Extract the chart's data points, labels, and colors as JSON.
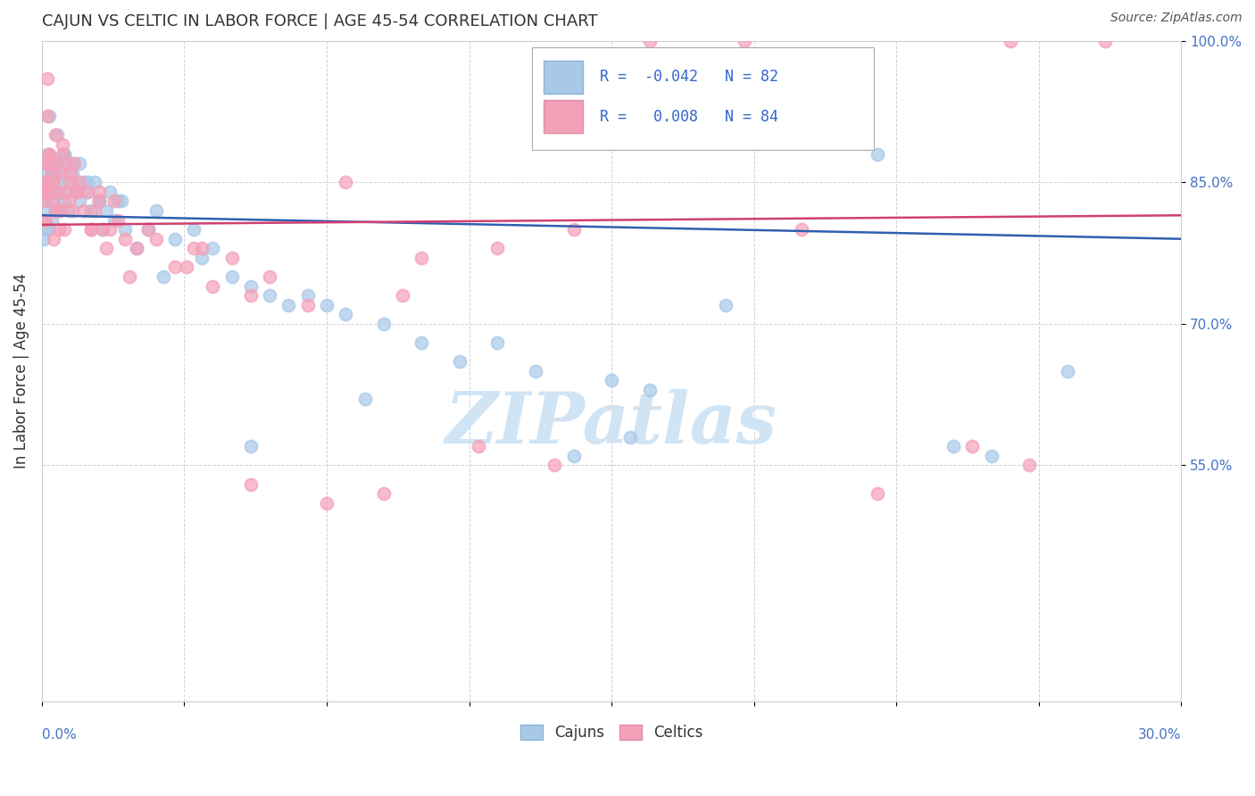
{
  "title": "CAJUN VS CELTIC IN LABOR FORCE | AGE 45-54 CORRELATION CHART",
  "source": "Source: ZipAtlas.com",
  "ylabel": "In Labor Force | Age 45-54",
  "xlim": [
    0.0,
    30.0
  ],
  "ylim": [
    30.0,
    100.0
  ],
  "yticks": [
    55.0,
    70.0,
    85.0,
    100.0
  ],
  "cajun_R": -0.042,
  "cajun_N": 82,
  "celtic_R": 0.008,
  "celtic_N": 84,
  "cajun_color": "#a8c8e8",
  "celtic_color": "#f4a0b8",
  "cajun_line_color": "#3060b0",
  "celtic_line_color": "#d04070",
  "watermark_text": "ZIPatlas",
  "watermark_color": "#d0e4f4",
  "cajun_x": [
    0.05,
    0.05,
    0.05,
    0.1,
    0.1,
    0.1,
    0.1,
    0.15,
    0.15,
    0.2,
    0.2,
    0.2,
    0.25,
    0.25,
    0.3,
    0.3,
    0.35,
    0.35,
    0.4,
    0.4,
    0.4,
    0.5,
    0.5,
    0.6,
    0.6,
    0.7,
    0.7,
    0.8,
    0.9,
    1.0,
    1.0,
    1.1,
    1.2,
    1.3,
    1.4,
    1.5,
    1.6,
    1.7,
    1.8,
    1.9,
    2.0,
    2.2,
    2.5,
    2.8,
    3.0,
    3.5,
    4.0,
    4.5,
    5.0,
    5.5,
    6.5,
    7.0,
    7.5,
    8.0,
    9.0,
    10.0,
    11.0,
    13.0,
    15.0,
    16.0,
    18.0,
    20.0,
    22.0,
    24.0,
    25.0,
    27.0,
    14.0,
    15.5,
    12.0,
    8.5,
    6.0,
    5.5,
    4.2,
    3.2,
    2.1,
    1.5,
    1.2,
    0.8,
    0.6,
    0.4,
    0.3,
    0.2
  ],
  "cajun_y": [
    82.0,
    85.0,
    79.0,
    87.0,
    84.0,
    83.0,
    80.0,
    88.0,
    86.0,
    92.0,
    85.0,
    80.0,
    84.0,
    81.0,
    86.0,
    83.0,
    87.0,
    82.0,
    90.0,
    85.0,
    82.0,
    87.0,
    84.0,
    88.0,
    83.0,
    85.0,
    82.0,
    86.0,
    84.0,
    87.0,
    83.0,
    85.0,
    84.0,
    82.0,
    85.0,
    83.0,
    80.0,
    82.0,
    84.0,
    81.0,
    83.0,
    80.0,
    78.0,
    80.0,
    82.0,
    79.0,
    80.0,
    78.0,
    75.0,
    74.0,
    72.0,
    73.0,
    72.0,
    71.0,
    70.0,
    68.0,
    66.0,
    65.0,
    64.0,
    63.0,
    72.0,
    91.0,
    88.0,
    57.0,
    56.0,
    65.0,
    56.0,
    58.0,
    68.0,
    62.0,
    73.0,
    57.0,
    77.0,
    75.0,
    83.0,
    83.0,
    85.0,
    87.0,
    88.0,
    86.0,
    87.0,
    84.0
  ],
  "celtic_x": [
    0.05,
    0.05,
    0.05,
    0.1,
    0.1,
    0.1,
    0.15,
    0.15,
    0.2,
    0.2,
    0.25,
    0.25,
    0.3,
    0.3,
    0.35,
    0.35,
    0.4,
    0.45,
    0.5,
    0.5,
    0.55,
    0.6,
    0.6,
    0.65,
    0.7,
    0.75,
    0.8,
    0.85,
    0.9,
    1.0,
    1.1,
    1.2,
    1.3,
    1.4,
    1.5,
    1.6,
    1.7,
    1.8,
    1.9,
    2.0,
    2.2,
    2.5,
    2.8,
    3.0,
    3.5,
    4.0,
    4.5,
    5.0,
    5.5,
    6.0,
    7.0,
    8.0,
    9.5,
    10.0,
    12.0,
    14.0,
    3.8,
    4.2,
    2.3,
    1.5,
    1.3,
    0.95,
    0.75,
    0.55,
    0.45,
    0.35,
    0.28,
    0.22,
    0.18,
    0.12,
    0.08,
    5.5,
    7.5,
    9.0,
    11.5,
    13.5,
    16.0,
    18.5,
    20.0,
    22.0,
    24.5,
    26.0,
    28.0,
    25.5
  ],
  "celtic_y": [
    85.0,
    83.0,
    81.0,
    87.0,
    84.0,
    81.0,
    96.0,
    92.0,
    88.0,
    84.0,
    86.0,
    83.0,
    85.0,
    79.0,
    87.0,
    82.0,
    84.0,
    80.0,
    86.0,
    82.0,
    88.0,
    84.0,
    80.0,
    87.0,
    83.0,
    85.0,
    82.0,
    87.0,
    84.0,
    85.0,
    82.0,
    84.0,
    80.0,
    82.0,
    84.0,
    80.0,
    78.0,
    80.0,
    83.0,
    81.0,
    79.0,
    78.0,
    80.0,
    79.0,
    76.0,
    78.0,
    74.0,
    77.0,
    73.0,
    75.0,
    72.0,
    85.0,
    73.0,
    77.0,
    78.0,
    80.0,
    76.0,
    78.0,
    75.0,
    83.0,
    80.0,
    84.0,
    86.0,
    89.0,
    82.0,
    90.0,
    85.0,
    87.0,
    88.0,
    84.0,
    85.0,
    53.0,
    51.0,
    52.0,
    57.0,
    55.0,
    100.0,
    100.0,
    80.0,
    52.0,
    57.0,
    55.0,
    100.0,
    100.0
  ]
}
